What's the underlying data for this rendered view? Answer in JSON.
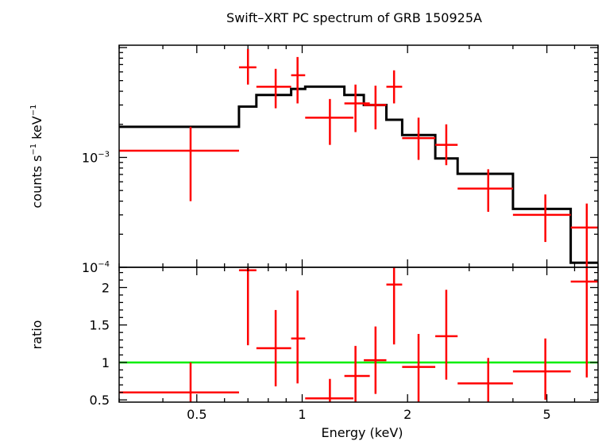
{
  "chart_data": [
    {
      "type": "scatter",
      "title": "Swift–XRT PC spectrum of GRB 150925A",
      "xlabel": "",
      "ylabel_main": "counts s",
      "ylabel_sup1": "−1",
      "ylabel_mid": " keV",
      "ylabel_sup2": "−1",
      "xscale": "log",
      "yscale": "log",
      "xlim": [
        0.3,
        7.0
      ],
      "ylim": [
        0.0001,
        0.0105
      ],
      "yticks": [
        {
          "value": 0.001,
          "base": "10",
          "exp": "−3"
        },
        {
          "value": 0.0001,
          "base": "10",
          "exp": "−4"
        }
      ],
      "series": [
        {
          "kind": "data",
          "color": "#ff0000",
          "points": [
            {
              "x": 0.48,
              "xlo": 0.3,
              "xhi": 0.66,
              "y": 0.00115,
              "ylo": 0.0004,
              "yhi": 0.0019
            },
            {
              "x": 0.7,
              "xlo": 0.66,
              "xhi": 0.74,
              "y": 0.0066,
              "ylo": 0.0046,
              "yhi": 0.0097
            },
            {
              "x": 0.84,
              "xlo": 0.74,
              "xhi": 0.93,
              "y": 0.0044,
              "ylo": 0.0028,
              "yhi": 0.0064
            },
            {
              "x": 0.97,
              "xlo": 0.93,
              "xhi": 1.02,
              "y": 0.0056,
              "ylo": 0.0031,
              "yhi": 0.0082
            },
            {
              "x": 1.2,
              "xlo": 1.02,
              "xhi": 1.4,
              "y": 0.0023,
              "ylo": 0.0013,
              "yhi": 0.0034
            },
            {
              "x": 1.42,
              "xlo": 1.32,
              "xhi": 1.56,
              "y": 0.0031,
              "ylo": 0.0017,
              "yhi": 0.0046
            },
            {
              "x": 1.62,
              "xlo": 1.5,
              "xhi": 1.74,
              "y": 0.003,
              "ylo": 0.0018,
              "yhi": 0.0045
            },
            {
              "x": 1.83,
              "xlo": 1.74,
              "xhi": 1.93,
              "y": 0.0044,
              "ylo": 0.0031,
              "yhi": 0.0062
            },
            {
              "x": 2.15,
              "xlo": 1.93,
              "xhi": 2.4,
              "y": 0.0015,
              "ylo": 0.00095,
              "yhi": 0.0023
            },
            {
              "x": 2.58,
              "xlo": 2.4,
              "xhi": 2.78,
              "y": 0.0013,
              "ylo": 0.00085,
              "yhi": 0.002
            },
            {
              "x": 3.4,
              "xlo": 2.78,
              "xhi": 4.0,
              "y": 0.00052,
              "ylo": 0.00032,
              "yhi": 0.00078
            },
            {
              "x": 4.95,
              "xlo": 4.0,
              "xhi": 5.85,
              "y": 0.0003,
              "ylo": 0.00017,
              "yhi": 0.00046
            },
            {
              "x": 6.5,
              "xlo": 5.85,
              "xhi": 7.0,
              "y": 0.00023,
              "ylo": 0.0001,
              "yhi": 0.00038
            }
          ]
        },
        {
          "kind": "model",
          "color": "#000000",
          "steps": [
            {
              "xlo": 0.3,
              "xhi": 0.66,
              "y": 0.0019
            },
            {
              "xlo": 0.66,
              "xhi": 0.74,
              "y": 0.0029
            },
            {
              "xlo": 0.74,
              "xhi": 0.93,
              "y": 0.0037
            },
            {
              "xlo": 0.93,
              "xhi": 1.02,
              "y": 0.0042
            },
            {
              "xlo": 1.02,
              "xhi": 1.32,
              "y": 0.0044
            },
            {
              "xlo": 1.32,
              "xhi": 1.5,
              "y": 0.0037
            },
            {
              "xlo": 1.5,
              "xhi": 1.74,
              "y": 0.003
            },
            {
              "xlo": 1.74,
              "xhi": 1.93,
              "y": 0.0022
            },
            {
              "xlo": 1.93,
              "xhi": 2.4,
              "y": 0.0016
            },
            {
              "xlo": 2.4,
              "xhi": 2.78,
              "y": 0.00098
            },
            {
              "xlo": 2.78,
              "xhi": 4.0,
              "y": 0.00071
            },
            {
              "xlo": 4.0,
              "xhi": 5.85,
              "y": 0.00034
            },
            {
              "xlo": 5.85,
              "xhi": 7.0,
              "y": 0.00011
            }
          ]
        }
      ]
    },
    {
      "type": "scatter",
      "xlabel": "Energy (keV)",
      "ylabel": "ratio",
      "xscale": "log",
      "yscale": "linear",
      "xlim": [
        0.3,
        7.0
      ],
      "ylim": [
        0.47,
        2.27
      ],
      "xticks": [
        {
          "value": 0.5,
          "label": "0.5"
        },
        {
          "value": 1,
          "label": "1"
        },
        {
          "value": 2,
          "label": "2"
        },
        {
          "value": 5,
          "label": "5"
        }
      ],
      "yticks": [
        {
          "value": 0.5,
          "label": "0.5"
        },
        {
          "value": 1,
          "label": "1"
        },
        {
          "value": 1.5,
          "label": "1.5"
        },
        {
          "value": 2,
          "label": "2"
        }
      ],
      "reference_line": {
        "y": 1,
        "color": "#00ee00"
      },
      "series": [
        {
          "kind": "data",
          "color": "#ff0000",
          "points": [
            {
              "x": 0.48,
              "xlo": 0.3,
              "xhi": 0.66,
              "y": 0.6,
              "ylo": 0.47,
              "yhi": 1.0
            },
            {
              "x": 0.7,
              "xlo": 0.66,
              "xhi": 0.74,
              "y": 2.23,
              "ylo": 1.23,
              "yhi": 2.27
            },
            {
              "x": 0.84,
              "xlo": 0.74,
              "xhi": 0.93,
              "y": 1.19,
              "ylo": 0.68,
              "yhi": 1.7
            },
            {
              "x": 0.97,
              "xlo": 0.93,
              "xhi": 1.02,
              "y": 1.32,
              "ylo": 0.72,
              "yhi": 1.96
            },
            {
              "x": 1.2,
              "xlo": 1.02,
              "xhi": 1.4,
              "y": 0.52,
              "ylo": 0.47,
              "yhi": 0.78
            },
            {
              "x": 1.42,
              "xlo": 1.32,
              "xhi": 1.56,
              "y": 0.82,
              "ylo": 0.47,
              "yhi": 1.22
            },
            {
              "x": 1.62,
              "xlo": 1.5,
              "xhi": 1.74,
              "y": 1.03,
              "ylo": 0.58,
              "yhi": 1.48
            },
            {
              "x": 1.83,
              "xlo": 1.74,
              "xhi": 1.93,
              "y": 2.04,
              "ylo": 1.24,
              "yhi": 2.27
            },
            {
              "x": 2.15,
              "xlo": 1.93,
              "xhi": 2.4,
              "y": 0.94,
              "ylo": 0.47,
              "yhi": 1.38
            },
            {
              "x": 2.58,
              "xlo": 2.4,
              "xhi": 2.78,
              "y": 1.35,
              "ylo": 0.77,
              "yhi": 1.97
            },
            {
              "x": 3.4,
              "xlo": 2.78,
              "xhi": 4.0,
              "y": 0.72,
              "ylo": 0.47,
              "yhi": 1.06
            },
            {
              "x": 4.95,
              "xlo": 4.0,
              "xhi": 5.85,
              "y": 0.88,
              "ylo": 0.5,
              "yhi": 1.32
            },
            {
              "x": 6.5,
              "xlo": 5.85,
              "xhi": 7.0,
              "y": 2.08,
              "ylo": 0.8,
              "yhi": 2.27
            }
          ]
        }
      ]
    }
  ]
}
